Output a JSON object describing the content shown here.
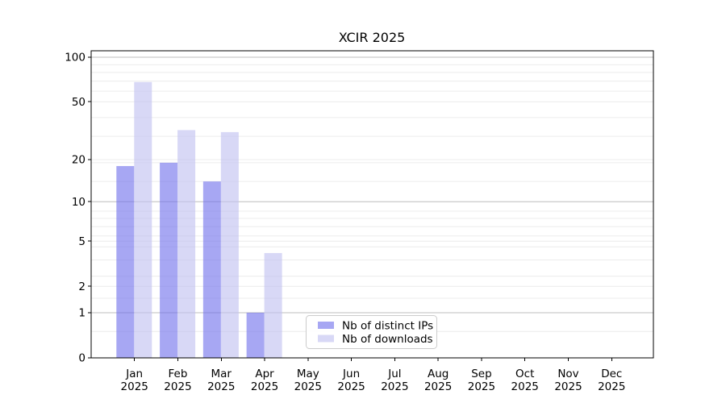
{
  "chart_data": {
    "type": "bar",
    "title": "XCIR 2025",
    "xlabel": "",
    "ylabel": "",
    "yscale": "log1p",
    "grid": true,
    "ylim": [
      0,
      110
    ],
    "yticks": [
      0,
      1,
      2,
      5,
      10,
      20,
      50,
      100
    ],
    "categories": [
      "Jan",
      "Feb",
      "Mar",
      "Apr",
      "May",
      "Jun",
      "Jul",
      "Aug",
      "Sep",
      "Oct",
      "Nov",
      "Dec"
    ],
    "category_year": "2025",
    "series": [
      {
        "name": "Nb of distinct IPs",
        "color": "rgba(113,113,235,0.62)",
        "values": [
          18,
          19,
          14,
          1,
          0,
          0,
          0,
          0,
          0,
          0,
          0,
          0
        ]
      },
      {
        "name": "Nb of downloads",
        "color": "rgba(192,192,241,0.62)",
        "values": [
          68,
          32,
          31,
          4,
          0,
          0,
          0,
          0,
          0,
          0,
          0,
          0
        ]
      }
    ],
    "legend_position": "bottom-center-inside",
    "colors": {
      "major_grid": "#bdbdbd",
      "minor_grid": "#ececec",
      "spine": "#000000",
      "legend_border": "#cccccc"
    }
  }
}
